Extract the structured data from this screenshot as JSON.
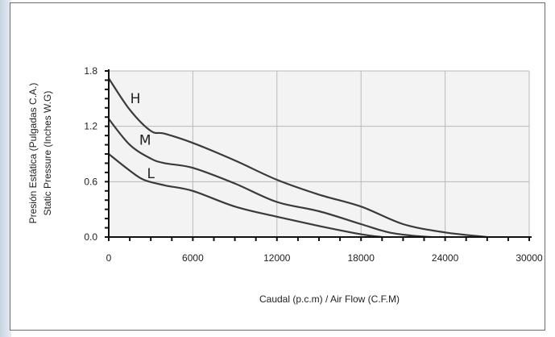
{
  "chart_data": {
    "type": "line",
    "title": "",
    "xlabel": "Caudal (p.c.m) / Air Flow (C.F.M)",
    "ylabel_lines": [
      "Presión Estática (Pulgadas C.A.)",
      "Static Pressure (Inches W.G)"
    ],
    "xlim": [
      0,
      30000
    ],
    "ylim": [
      0,
      1.8
    ],
    "x_ticks": [
      0,
      6000,
      12000,
      18000,
      24000,
      30000
    ],
    "x_tick_labels": [
      "0",
      "6000",
      "12000",
      "18000",
      "24000",
      "30000"
    ],
    "y_ticks": [
      0,
      0.6,
      1.2,
      1.8
    ],
    "y_tick_labels": [
      "0.0",
      "0.6",
      "1.2",
      "1.8"
    ],
    "grid": true,
    "series": [
      {
        "name": "H",
        "x": [
          0,
          1500,
          3000,
          4000,
          6000,
          9000,
          12000,
          15000,
          18000,
          21000,
          24000,
          27000
        ],
        "y": [
          1.72,
          1.38,
          1.15,
          1.12,
          1.02,
          0.83,
          0.62,
          0.46,
          0.33,
          0.14,
          0.05,
          0.0
        ]
      },
      {
        "name": "M",
        "x": [
          0,
          1500,
          3000,
          4000,
          6000,
          9000,
          12000,
          15000,
          18000,
          20000,
          22000,
          23000
        ],
        "y": [
          1.28,
          1.0,
          0.85,
          0.8,
          0.75,
          0.58,
          0.38,
          0.28,
          0.14,
          0.05,
          0.01,
          0.0
        ]
      },
      {
        "name": "L",
        "x": [
          0,
          1500,
          2500,
          4000,
          6000,
          9000,
          12000,
          15000,
          18000,
          19500
        ],
        "y": [
          0.9,
          0.72,
          0.62,
          0.56,
          0.5,
          0.33,
          0.22,
          0.12,
          0.03,
          0.0
        ]
      }
    ]
  }
}
